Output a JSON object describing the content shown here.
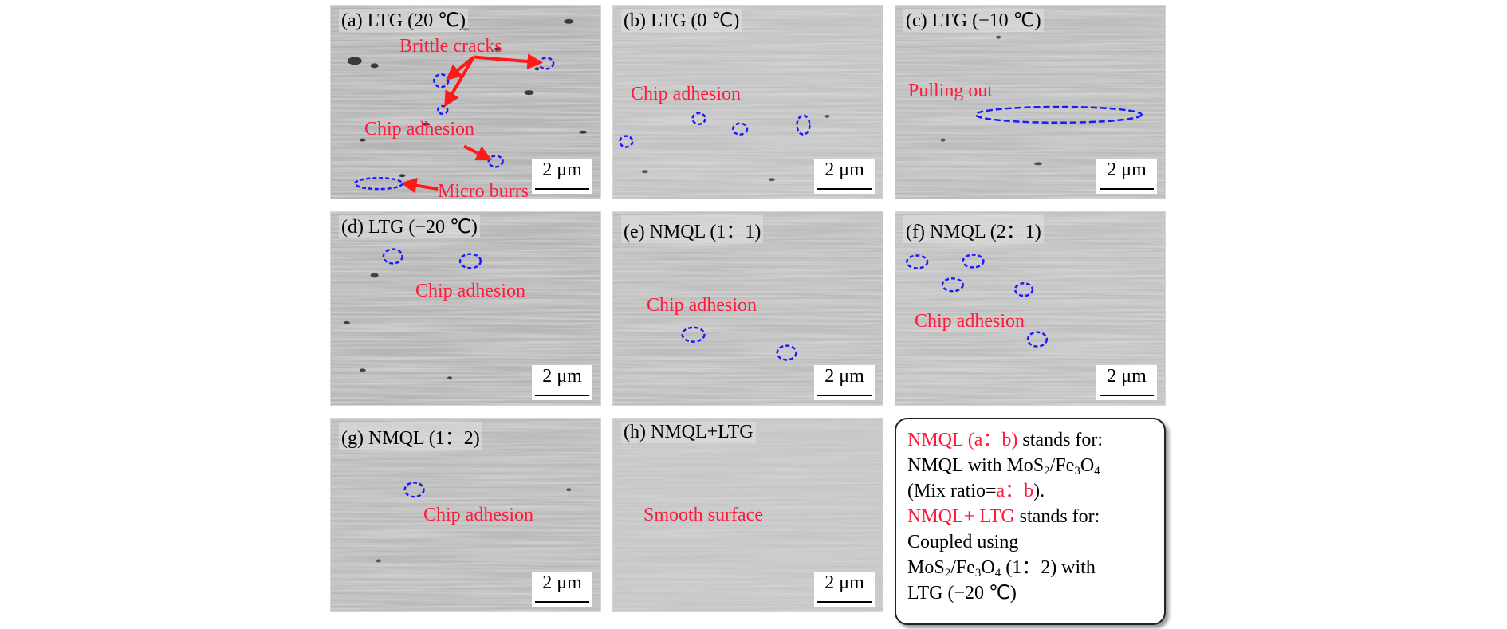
{
  "figure": {
    "panels": [
      {
        "id": "a",
        "label": "(a) LTG (20 ℃)",
        "annotations": [
          "Brittle cracks",
          "Chip adhesion",
          "Micro burrs"
        ],
        "scale": "2 μm"
      },
      {
        "id": "b",
        "label": "(b) LTG (0 ℃)",
        "annotations": [
          "Chip adhesion"
        ],
        "scale": "2 μm"
      },
      {
        "id": "c",
        "label": "(c) LTG (−10 ℃)",
        "annotations": [
          "Pulling out"
        ],
        "scale": "2 μm"
      },
      {
        "id": "d",
        "label": "(d) LTG (−20 ℃)",
        "annotations": [
          "Chip adhesion"
        ],
        "scale": "2 μm"
      },
      {
        "id": "e",
        "label": "(e) NMQL (1：1)",
        "annotations": [
          "Chip adhesion"
        ],
        "scale": "2 μm"
      },
      {
        "id": "f",
        "label": "(f) NMQL (2：1)",
        "annotations": [
          "Chip adhesion"
        ],
        "scale": "2 μm"
      },
      {
        "id": "g",
        "label": "(g) NMQL (1：2)",
        "annotations": [
          "Chip adhesion"
        ],
        "scale": "2 μm"
      },
      {
        "id": "h",
        "label": "(h) NMQL+LTG",
        "annotations": [
          "Smooth surface"
        ],
        "scale": "2 μm"
      }
    ],
    "legend": {
      "l1_red": "NMQL (a：b)",
      "l1_rest": " stands for:",
      "l2": "NMQL with MoS",
      "l2_sub1": "2",
      "l2_mid": "/Fe",
      "l2_sub2": "3",
      "l2_o": "O",
      "l2_sub3": "4",
      "l3_pre": "(Mix ratio=",
      "l3_red": "a：b",
      "l3_post": ").",
      "l4_red": "NMQL+ LTG",
      "l4_rest": " stands for:",
      "l5": "Coupled using",
      "l6_a": "MoS",
      "l6_sub1": "2",
      "l6_b": "/Fe",
      "l6_sub2": "3",
      "l6_c": "O",
      "l6_sub3": "4",
      "l6_d": " (1：2) with",
      "l7": "LTG (−20 ℃)"
    },
    "colors": {
      "annotation": "#ff1a3c",
      "marker": "#1a1aff",
      "arrow": "#ff1a1a"
    }
  }
}
